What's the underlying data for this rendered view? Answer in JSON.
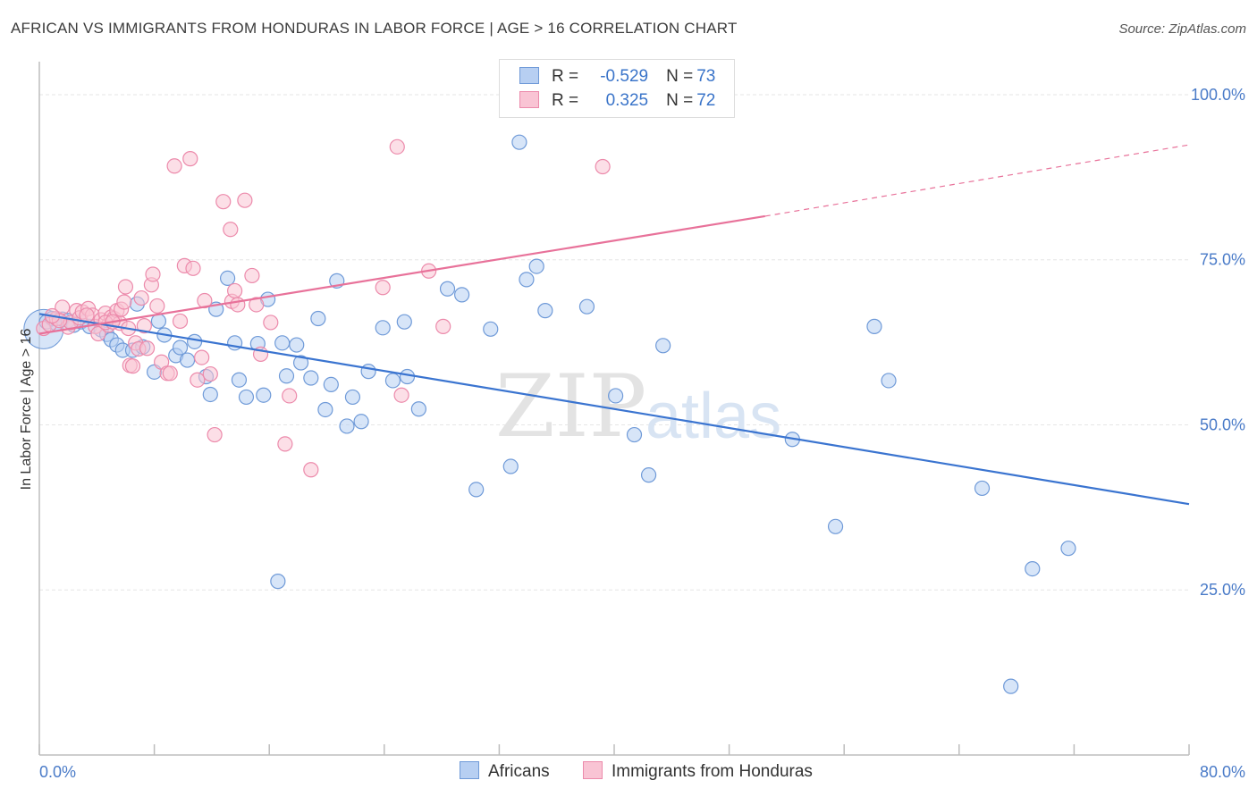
{
  "title": "AFRICAN VS IMMIGRANTS FROM HONDURAS IN LABOR FORCE | AGE > 16 CORRELATION CHART",
  "source": "Source: ZipAtlas.com",
  "watermark": {
    "zip": "ZIP",
    "atlas": "atlas"
  },
  "legend": {
    "africans": {
      "r_label": "R =",
      "r_value": "-0.529",
      "n_label": "N =",
      "n_value": "73"
    },
    "honduras": {
      "r_label": "R =",
      "r_value": "0.325",
      "n_label": "N =",
      "n_value": "72"
    }
  },
  "bottom_legend": {
    "africans": "Africans",
    "honduras": "Immigrants from Honduras"
  },
  "colors": {
    "africans_fill": "#b7cff2",
    "africans_stroke": "#6f9ad8",
    "africans_line": "#3a74d0",
    "honduras_fill": "#f9c4d4",
    "honduras_stroke": "#ec8aab",
    "honduras_line": "#e8729a",
    "tick_text": "#4a7bc8",
    "grid": "#e6e6e6"
  },
  "chart_data": {
    "type": "scatter",
    "ylabel": "In Labor Force | Age > 16",
    "xlim": [
      0,
      80
    ],
    "ylim": [
      0,
      105
    ],
    "x_tick_labels": [
      {
        "value": 0,
        "label": "0.0%"
      },
      {
        "value": 80,
        "label": "80.0%"
      }
    ],
    "y_tick_labels": [
      {
        "value": 100,
        "label": "100.0%"
      },
      {
        "value": 75,
        "label": "75.0%"
      },
      {
        "value": 50,
        "label": "50.0%"
      },
      {
        "value": 25,
        "label": "25.0%"
      }
    ],
    "grid": true,
    "series": [
      {
        "name": "Africans",
        "trend": {
          "x": [
            0,
            80
          ],
          "y": [
            66.8,
            38.0
          ],
          "dashed_to": null
        },
        "points": [
          [
            0.5,
            65.6
          ],
          [
            0.9,
            66.1
          ],
          [
            1.2,
            65.3
          ],
          [
            1.6,
            66.0
          ],
          [
            2.0,
            65.8
          ],
          [
            2.4,
            65.1
          ],
          [
            2.9,
            65.6
          ],
          [
            3.5,
            64.9
          ],
          [
            4.3,
            64.4
          ],
          [
            4.7,
            63.7
          ],
          [
            5.0,
            62.9
          ],
          [
            5.4,
            62.1
          ],
          [
            5.8,
            61.3
          ],
          [
            6.5,
            61.3
          ],
          [
            6.8,
            68.3
          ],
          [
            7.2,
            61.8
          ],
          [
            8.0,
            58.0
          ],
          [
            8.3,
            65.7
          ],
          [
            8.7,
            63.6
          ],
          [
            9.5,
            60.5
          ],
          [
            9.8,
            61.7
          ],
          [
            10.3,
            59.8
          ],
          [
            10.8,
            62.6
          ],
          [
            11.6,
            57.3
          ],
          [
            11.9,
            54.6
          ],
          [
            12.3,
            67.5
          ],
          [
            13.1,
            72.2
          ],
          [
            13.6,
            62.4
          ],
          [
            13.9,
            56.8
          ],
          [
            14.4,
            54.2
          ],
          [
            15.2,
            62.3
          ],
          [
            15.6,
            54.5
          ],
          [
            15.9,
            69.0
          ],
          [
            16.9,
            62.4
          ],
          [
            17.2,
            57.4
          ],
          [
            17.9,
            62.1
          ],
          [
            18.2,
            59.4
          ],
          [
            18.9,
            57.1
          ],
          [
            19.4,
            66.1
          ],
          [
            19.9,
            52.3
          ],
          [
            20.3,
            56.1
          ],
          [
            20.7,
            71.8
          ],
          [
            21.4,
            49.8
          ],
          [
            21.8,
            54.2
          ],
          [
            22.4,
            50.5
          ],
          [
            22.9,
            58.1
          ],
          [
            23.9,
            64.7
          ],
          [
            24.6,
            56.7
          ],
          [
            25.4,
            65.6
          ],
          [
            25.6,
            57.3
          ],
          [
            26.4,
            52.4
          ],
          [
            28.4,
            70.6
          ],
          [
            29.4,
            69.7
          ],
          [
            30.4,
            40.2
          ],
          [
            31.4,
            64.5
          ],
          [
            32.8,
            43.7
          ],
          [
            33.4,
            92.8
          ],
          [
            33.9,
            72.0
          ],
          [
            34.6,
            74.0
          ],
          [
            35.2,
            67.3
          ],
          [
            38.1,
            67.9
          ],
          [
            40.1,
            54.4
          ],
          [
            41.4,
            48.5
          ],
          [
            42.4,
            42.4
          ],
          [
            43.4,
            62.0
          ],
          [
            52.4,
            47.8
          ],
          [
            55.4,
            34.6
          ],
          [
            58.1,
            64.9
          ],
          [
            59.1,
            56.7
          ],
          [
            65.6,
            40.4
          ],
          [
            69.1,
            28.2
          ],
          [
            71.6,
            31.3
          ],
          [
            67.6,
            10.4
          ],
          [
            16.6,
            26.3
          ]
        ]
      },
      {
        "name": "Immigrants from Honduras",
        "trend": {
          "x": [
            0,
            50.5
          ],
          "y": [
            63.8,
            81.6
          ],
          "dashed_to": [
            80,
            92.4
          ]
        },
        "points": [
          [
            0.3,
            64.6
          ],
          [
            0.7,
            65.2
          ],
          [
            1.2,
            66.1
          ],
          [
            1.6,
            67.8
          ],
          [
            2.0,
            64.8
          ],
          [
            2.2,
            65.5
          ],
          [
            2.6,
            67.3
          ],
          [
            2.8,
            66.2
          ],
          [
            3.0,
            67.1
          ],
          [
            3.4,
            67.6
          ],
          [
            3.7,
            66.6
          ],
          [
            3.9,
            64.9
          ],
          [
            4.1,
            63.8
          ],
          [
            4.3,
            65.9
          ],
          [
            4.6,
            66.9
          ],
          [
            4.8,
            65.1
          ],
          [
            5.0,
            66.3
          ],
          [
            5.2,
            66.1
          ],
          [
            5.4,
            67.3
          ],
          [
            5.6,
            65.4
          ],
          [
            5.7,
            67.5
          ],
          [
            5.9,
            68.6
          ],
          [
            6.0,
            70.9
          ],
          [
            6.2,
            64.6
          ],
          [
            6.3,
            59.0
          ],
          [
            6.5,
            58.9
          ],
          [
            6.7,
            62.4
          ],
          [
            6.9,
            61.5
          ],
          [
            7.1,
            69.2
          ],
          [
            7.3,
            65.0
          ],
          [
            7.5,
            61.6
          ],
          [
            7.8,
            71.2
          ],
          [
            7.9,
            72.8
          ],
          [
            8.2,
            68.0
          ],
          [
            8.5,
            59.5
          ],
          [
            8.9,
            57.8
          ],
          [
            9.1,
            57.8
          ],
          [
            9.4,
            89.2
          ],
          [
            9.8,
            65.7
          ],
          [
            10.1,
            74.1
          ],
          [
            10.5,
            90.3
          ],
          [
            10.7,
            73.7
          ],
          [
            11.0,
            56.8
          ],
          [
            11.3,
            60.2
          ],
          [
            11.5,
            68.8
          ],
          [
            11.9,
            57.7
          ],
          [
            12.2,
            48.5
          ],
          [
            12.8,
            83.8
          ],
          [
            13.3,
            79.6
          ],
          [
            13.4,
            68.7
          ],
          [
            13.6,
            70.3
          ],
          [
            13.8,
            68.2
          ],
          [
            14.3,
            84.0
          ],
          [
            14.8,
            72.6
          ],
          [
            15.1,
            68.2
          ],
          [
            15.4,
            60.7
          ],
          [
            16.1,
            65.5
          ],
          [
            17.1,
            47.1
          ],
          [
            17.4,
            54.4
          ],
          [
            18.9,
            43.2
          ],
          [
            23.9,
            70.8
          ],
          [
            24.9,
            92.1
          ],
          [
            25.2,
            54.5
          ],
          [
            27.1,
            73.3
          ],
          [
            28.1,
            64.9
          ],
          [
            39.2,
            89.1
          ],
          [
            43.8,
            100.0
          ],
          [
            4.6,
            65.5
          ],
          [
            3.3,
            66.6
          ],
          [
            1.4,
            65.8
          ],
          [
            0.9,
            66.5
          ],
          [
            5.1,
            65.6
          ]
        ]
      }
    ]
  }
}
